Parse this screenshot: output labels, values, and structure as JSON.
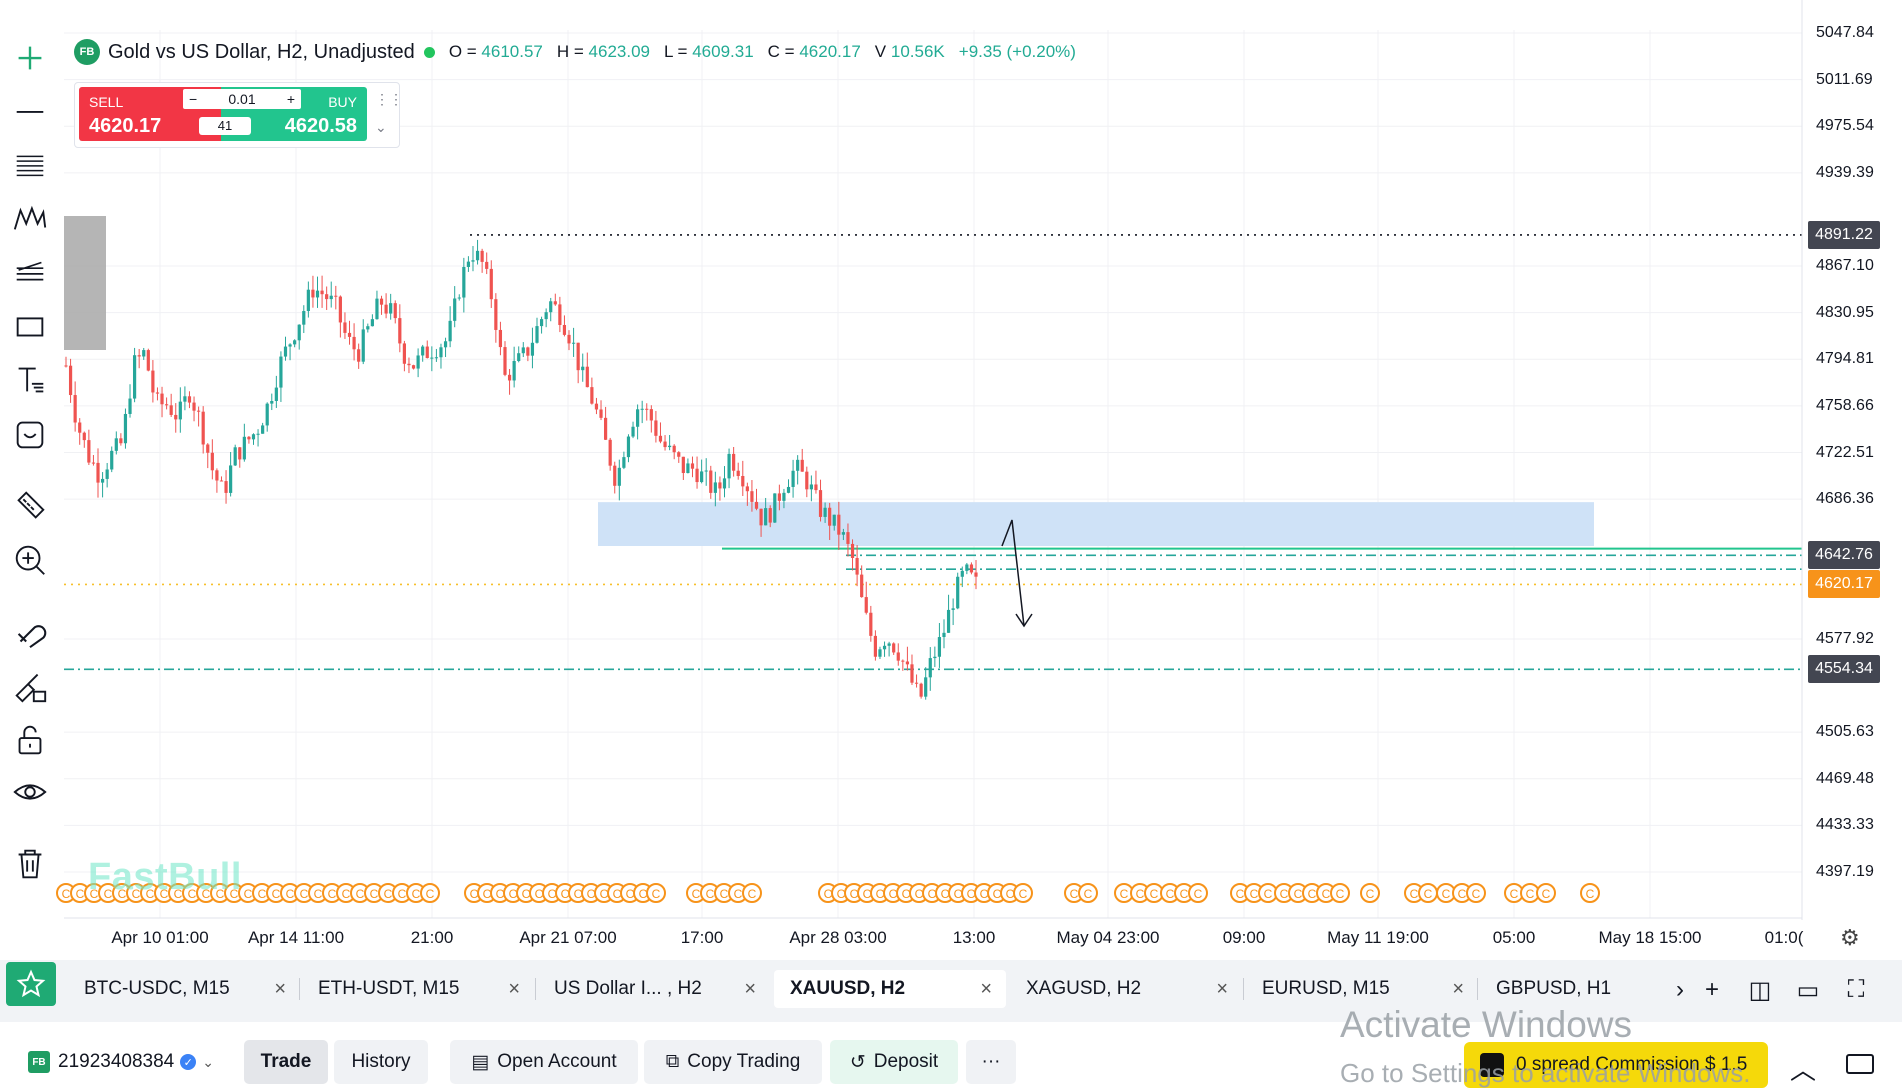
{
  "header": {
    "symbol_logo": "FB",
    "title": "Gold vs US Dollar, H2, Unadjusted",
    "ohlc": {
      "o_label": "O =",
      "o": "4610.57",
      "h_label": "H =",
      "h": "4623.09",
      "l_label": "L =",
      "l": "4609.31",
      "c_label": "C =",
      "c": "4620.17",
      "v_label": "V",
      "v": "10.56K",
      "change": "+9.35 (+0.20%)"
    },
    "status_color": "#22c55e"
  },
  "trade_widget": {
    "sell_label": "SELL",
    "sell_price": "4620.17",
    "buy_label": "BUY",
    "buy_price": "4620.58",
    "qty": "0.01",
    "minus": "−",
    "plus": "+",
    "spread": "41",
    "sell_color": "#f23645",
    "buy_color": "#22c58e"
  },
  "price_axis": {
    "ticks": [
      "5047.84",
      "5011.69",
      "4975.54",
      "4939.39",
      "4867.10",
      "4830.95",
      "4794.81",
      "4758.66",
      "4722.51",
      "4686.36",
      "4577.92",
      "4505.63",
      "4469.48",
      "4433.33",
      "4397.19"
    ],
    "tags": [
      {
        "value": "4891.22",
        "color": "#434651"
      },
      {
        "value": "4642.76",
        "color": "#434651"
      },
      {
        "value": "4620.17",
        "color": "#f7931a"
      },
      {
        "value": "4554.34",
        "color": "#434651"
      }
    ]
  },
  "time_axis": [
    "Apr 10 01:00",
    "Apr 14 11:00",
    "21:00",
    "Apr 21 07:00",
    "17:00",
    "Apr 28 03:00",
    "13:00",
    "May 04 23:00",
    "09:00",
    "May 11 19:00",
    "05:00",
    "May 18 15:00",
    "01:0("
  ],
  "left_toolbar": [
    "crosshair-icon",
    "trend-line-icon",
    "fib-icon",
    "pattern-icon",
    "channel-icon",
    "rectangle-icon",
    "text-icon",
    "sticker-icon",
    "ruler-icon",
    "zoom-in-icon",
    "magnet-icon",
    "lock-drawings-icon",
    "lock-icon",
    "eye-icon",
    "trash-icon"
  ],
  "watermark": "FastBull",
  "tabs": [
    {
      "label": "BTC-USDC, M15",
      "active": false
    },
    {
      "label": "ETH-USDT, M15",
      "active": false
    },
    {
      "label": "US Dollar I... , H2",
      "active": false
    },
    {
      "label": "XAUUSD, H2",
      "active": true
    },
    {
      "label": "XAGUSD, H2",
      "active": false
    },
    {
      "label": "EURUSD, M15",
      "active": false
    },
    {
      "label": "GBPUSD, H1",
      "active": false
    }
  ],
  "tab_close": "×",
  "bottom_bar": {
    "account_logo": "FB",
    "account_id": "21923408384",
    "buttons": [
      "Trade",
      "History",
      "Open Account",
      "Copy Trading",
      "Deposit",
      "···"
    ],
    "promo_text": "0 spread Commission $ 1.5"
  },
  "os_watermark": {
    "line1": "Activate Windows",
    "line2": "Go to Settings to activate Windows."
  },
  "chart_data": {
    "type": "candlestick",
    "title": "Gold vs US Dollar, H2, Unadjusted",
    "ylim": [
      4380,
      5060
    ],
    "close_path": [
      4790,
      4745,
      4720,
      4705,
      4720,
      4730,
      4790,
      4800,
      4760,
      4760,
      4750,
      4770,
      4745,
      4710,
      4690,
      4720,
      4730,
      4740,
      4760,
      4790,
      4810,
      4830,
      4850,
      4845,
      4835,
      4810,
      4800,
      4820,
      4840,
      4830,
      4800,
      4790,
      4800,
      4805,
      4810,
      4850,
      4880,
      4870,
      4840,
      4780,
      4790,
      4800,
      4820,
      4840,
      4830,
      4810,
      4780,
      4760,
      4730,
      4700,
      4740,
      4760,
      4750,
      4730,
      4720,
      4710,
      4710,
      4700,
      4690,
      4720,
      4710,
      4690,
      4670,
      4680,
      4700,
      4710,
      4700,
      4680,
      4670,
      4660,
      4640,
      4600,
      4570,
      4580,
      4570,
      4550,
      4530,
      4560,
      4580,
      4610,
      4630,
      4620
    ],
    "horizontal_lines": [
      {
        "price": 4891.22,
        "style": "dotted",
        "color": "#131722"
      },
      {
        "price": 4648,
        "style": "solid",
        "color": "#22c58e"
      },
      {
        "price": 4642.76,
        "style": "dashdot",
        "color": "#26a69a"
      },
      {
        "price": 4632,
        "style": "dashdot",
        "color": "#26a69a"
      },
      {
        "price": 4620.17,
        "style": "dotted",
        "color": "#f7c02b"
      },
      {
        "price": 4554.34,
        "style": "dashdot",
        "color": "#26a69a"
      }
    ],
    "zone": {
      "from_price": 4684,
      "to_price": 4650,
      "color": "#cfe2f7"
    },
    "up_color": "#26a69a",
    "down_color": "#ef5350"
  }
}
